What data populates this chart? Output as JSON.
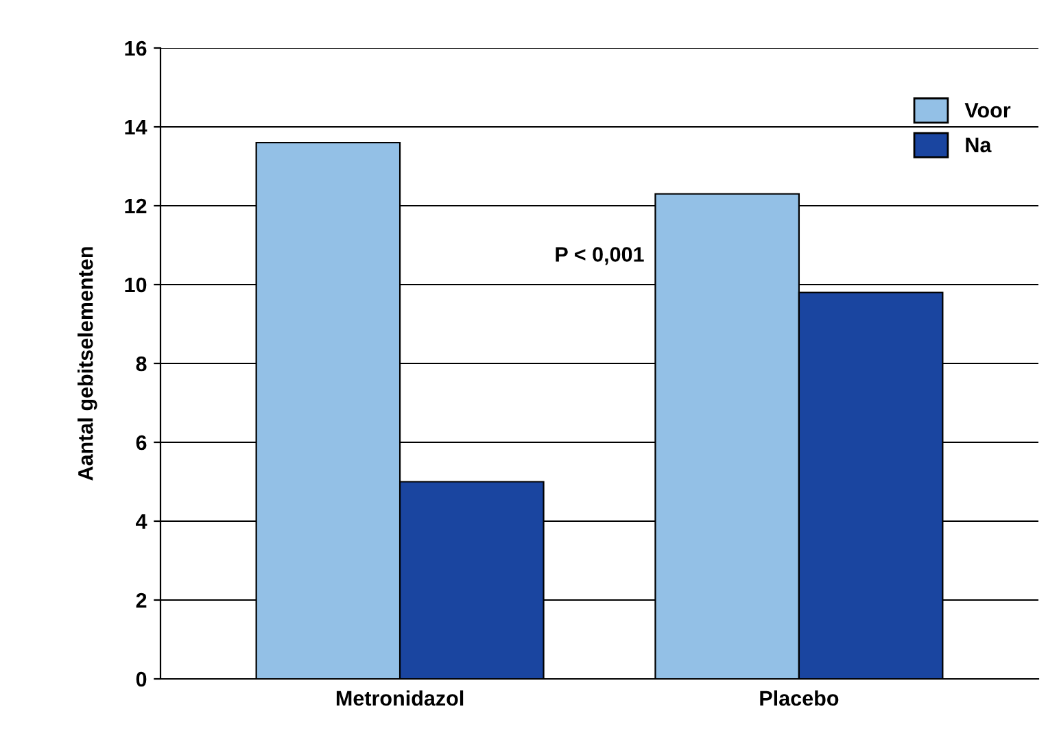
{
  "chart_data": {
    "type": "bar",
    "ylabel": "Aantal gebitselementen",
    "categories": [
      "Metronidazol",
      "Placebo"
    ],
    "series": [
      {
        "name": "Voor",
        "color": "#93c0e6",
        "values": [
          13.6,
          12.3
        ]
      },
      {
        "name": "Na",
        "color": "#1a45a0",
        "values": [
          5.0,
          9.8
        ]
      }
    ],
    "ylim": [
      0,
      16
    ],
    "yticks": [
      0,
      2,
      4,
      6,
      8,
      10,
      12,
      14,
      16
    ],
    "grid": "y",
    "legend": "top right",
    "annotations": [
      "P < 0,001"
    ]
  }
}
